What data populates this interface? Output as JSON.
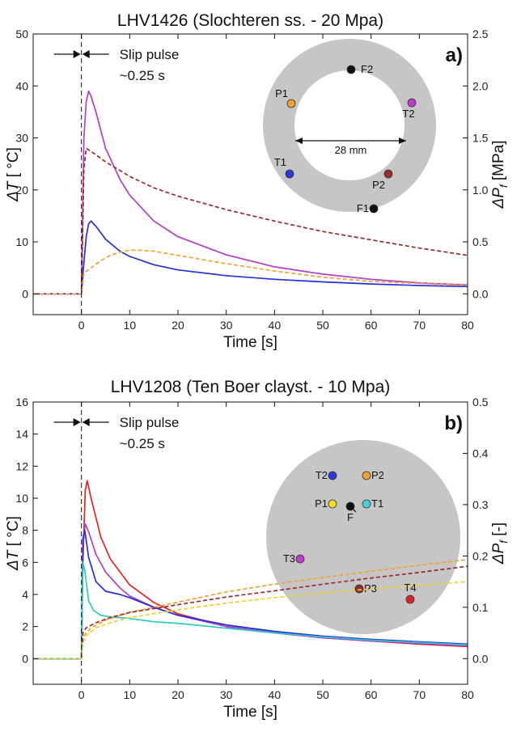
{
  "chart_data": [
    {
      "type": "line",
      "panel_label": "a)",
      "title": "LHV1426 (Slochteren ss. - 20 Mpa)",
      "xlabel": "Time [s]",
      "ylabel_prefix": "ΔT",
      "ylabel_unit": "[ °C]",
      "y2label_prefix": "ΔP",
      "y2label_sub": "f",
      "y2label_unit": "[MPa]",
      "xlim": [
        -10,
        80
      ],
      "ylim": [
        -4,
        50
      ],
      "y2lim": [
        -0.2,
        2.5
      ],
      "x_ticks": [
        0,
        10,
        20,
        30,
        40,
        50,
        60,
        70,
        80
      ],
      "y_ticks": [
        0,
        10,
        20,
        30,
        40,
        50
      ],
      "y2_ticks": [
        "0.0",
        "0.5",
        "1.0",
        "1.5",
        "2.0",
        "2.5"
      ],
      "grid": false,
      "slip_annotation": {
        "line1": "Slip pulse",
        "line2": "~0.25 s"
      },
      "series": [
        {
          "color": "#b23ec9",
          "axis": "left",
          "style": "solid",
          "points": [
            [
              -10,
              0
            ],
            [
              0,
              0
            ],
            [
              0.5,
              30
            ],
            [
              1,
              37
            ],
            [
              1.5,
              39
            ],
            [
              2,
              38
            ],
            [
              3,
              35
            ],
            [
              5,
              28
            ],
            [
              8,
              22
            ],
            [
              10,
              19
            ],
            [
              15,
              14
            ],
            [
              20,
              11
            ],
            [
              30,
              7.5
            ],
            [
              40,
              5.2
            ],
            [
              50,
              3.8
            ],
            [
              60,
              2.8
            ],
            [
              70,
              2.1
            ],
            [
              80,
              1.7
            ]
          ]
        },
        {
          "color": "#2730d8",
          "axis": "left",
          "style": "solid",
          "points": [
            [
              -10,
              0
            ],
            [
              0,
              0
            ],
            [
              0.5,
              6
            ],
            [
              1,
              11
            ],
            [
              1.5,
              13.5
            ],
            [
              2,
              14
            ],
            [
              3,
              13
            ],
            [
              5,
              10.5
            ],
            [
              8,
              8.2
            ],
            [
              10,
              7.2
            ],
            [
              15,
              5.6
            ],
            [
              20,
              4.6
            ],
            [
              30,
              3.5
            ],
            [
              40,
              2.8
            ],
            [
              50,
              2.3
            ],
            [
              60,
              1.9
            ],
            [
              70,
              1.6
            ],
            [
              80,
              1.4
            ]
          ]
        },
        {
          "color": "#9c2a2a",
          "axis": "right",
          "style": "dashed",
          "points": [
            [
              -10,
              0
            ],
            [
              0,
              0
            ],
            [
              0.5,
              1.2
            ],
            [
              1,
              1.4
            ],
            [
              2,
              1.37
            ],
            [
              5,
              1.27
            ],
            [
              10,
              1.13
            ],
            [
              15,
              1.02
            ],
            [
              20,
              0.94
            ],
            [
              30,
              0.81
            ],
            [
              40,
              0.7
            ],
            [
              50,
              0.6
            ],
            [
              60,
              0.52
            ],
            [
              70,
              0.44
            ],
            [
              80,
              0.37
            ]
          ]
        },
        {
          "color": "#f2a230",
          "axis": "right",
          "style": "dashed",
          "points": [
            [
              -10,
              0
            ],
            [
              0,
              0
            ],
            [
              0.5,
              0.2
            ],
            [
              2,
              0.25
            ],
            [
              4,
              0.32
            ],
            [
              6,
              0.37
            ],
            [
              8,
              0.4
            ],
            [
              10,
              0.42
            ],
            [
              12,
              0.42
            ],
            [
              15,
              0.41
            ],
            [
              20,
              0.37
            ],
            [
              30,
              0.29
            ],
            [
              40,
              0.22
            ],
            [
              50,
              0.16
            ],
            [
              60,
              0.12
            ],
            [
              70,
              0.1
            ],
            [
              80,
              0.08
            ]
          ]
        }
      ],
      "inset": {
        "shape": "ring",
        "dimension_label": "28 mm",
        "sensors": [
          {
            "label": "F2",
            "color": "#111111"
          },
          {
            "label": "P1",
            "color": "#f2a230"
          },
          {
            "label": "T2",
            "color": "#c23ad0"
          },
          {
            "label": "T1",
            "color": "#2a3ad8"
          },
          {
            "label": "P2",
            "color": "#9c2a2a"
          },
          {
            "label": "F1",
            "color": "#111111"
          }
        ]
      }
    },
    {
      "type": "line",
      "panel_label": "b)",
      "title": "LHV1208 (Ten Boer clayst. - 10 Mpa)",
      "xlabel": "Time [s]",
      "ylabel_prefix": "ΔT",
      "ylabel_unit": "[ °C]",
      "y2label_prefix": "ΔP",
      "y2label_sub": "f",
      "y2label_unit": "[-]",
      "xlim": [
        -10,
        80
      ],
      "ylim": [
        -1.6,
        16
      ],
      "y2lim": [
        -0.05,
        0.5
      ],
      "x_ticks": [
        0,
        10,
        20,
        30,
        40,
        50,
        60,
        70,
        80
      ],
      "y_ticks": [
        0,
        2,
        4,
        6,
        8,
        10,
        12,
        14,
        16
      ],
      "y2_ticks": [
        "0.0",
        "0.1",
        "0.2",
        "0.3",
        "0.4",
        "0.5"
      ],
      "grid": false,
      "slip_annotation": {
        "line1": "Slip pulse",
        "line2": "~0.25 s"
      },
      "series": [
        {
          "color": "#e02424",
          "axis": "left",
          "style": "solid",
          "points": [
            [
              -10,
              0
            ],
            [
              0,
              0
            ],
            [
              0.3,
              6
            ],
            [
              0.8,
              10.5
            ],
            [
              1.2,
              11.1
            ],
            [
              2,
              10
            ],
            [
              4,
              7.6
            ],
            [
              6,
              6.2
            ],
            [
              10,
              4.6
            ],
            [
              15,
              3.5
            ],
            [
              20,
              2.8
            ],
            [
              30,
              2
            ],
            [
              40,
              1.6
            ],
            [
              50,
              1.3
            ],
            [
              60,
              1.1
            ],
            [
              70,
              0.9
            ],
            [
              80,
              0.75
            ]
          ]
        },
        {
          "color": "#b23ec9",
          "axis": "left",
          "style": "solid",
          "points": [
            [
              -10,
              0
            ],
            [
              0,
              0
            ],
            [
              0.3,
              7
            ],
            [
              0.8,
              8.4
            ],
            [
              1.5,
              7.9
            ],
            [
              3,
              6.5
            ],
            [
              5,
              5.4
            ],
            [
              8,
              4.4
            ],
            [
              10,
              3.9
            ],
            [
              15,
              3.2
            ],
            [
              20,
              2.7
            ],
            [
              30,
              2
            ],
            [
              40,
              1.6
            ],
            [
              50,
              1.3
            ],
            [
              60,
              1.1
            ],
            [
              70,
              0.95
            ],
            [
              80,
              0.8
            ]
          ]
        },
        {
          "color": "#2730d8",
          "axis": "left",
          "style": "solid",
          "points": [
            [
              -10,
              0
            ],
            [
              0,
              0
            ],
            [
              0.3,
              7.5
            ],
            [
              0.7,
              8
            ],
            [
              1.5,
              6.3
            ],
            [
              3,
              4.8
            ],
            [
              5,
              4.2
            ],
            [
              8,
              4
            ],
            [
              10,
              3.8
            ],
            [
              15,
              3.2
            ],
            [
              20,
              2.7
            ],
            [
              30,
              2.1
            ],
            [
              40,
              1.7
            ],
            [
              50,
              1.4
            ],
            [
              60,
              1.2
            ],
            [
              70,
              1.05
            ],
            [
              80,
              0.9
            ]
          ]
        },
        {
          "color": "#2ec9c4",
          "axis": "left",
          "style": "solid",
          "points": [
            [
              -10,
              0
            ],
            [
              0,
              0
            ],
            [
              0.3,
              6
            ],
            [
              0.7,
              5.5
            ],
            [
              1.5,
              3.6
            ],
            [
              2.5,
              3
            ],
            [
              4,
              2.7
            ],
            [
              6,
              2.6
            ],
            [
              10,
              2.5
            ],
            [
              15,
              2.3
            ],
            [
              20,
              2.2
            ],
            [
              30,
              1.9
            ],
            [
              40,
              1.6
            ],
            [
              50,
              1.35
            ],
            [
              60,
              1.15
            ],
            [
              70,
              1
            ],
            [
              80,
              0.85
            ]
          ]
        },
        {
          "color": "#f2a230",
          "axis": "right",
          "style": "dashed",
          "points": [
            [
              -10,
              0
            ],
            [
              0,
              0
            ],
            [
              0.3,
              0.04
            ],
            [
              1,
              0.05
            ],
            [
              2,
              0.06
            ],
            [
              5,
              0.075
            ],
            [
              10,
              0.09
            ],
            [
              20,
              0.11
            ],
            [
              30,
              0.13
            ],
            [
              40,
              0.145
            ],
            [
              50,
              0.158
            ],
            [
              60,
              0.17
            ],
            [
              70,
              0.182
            ],
            [
              80,
              0.193
            ]
          ]
        },
        {
          "color": "#9c2a2a",
          "axis": "right",
          "style": "dashed",
          "points": [
            [
              -10,
              0
            ],
            [
              0,
              0
            ],
            [
              0.3,
              0.05
            ],
            [
              1,
              0.06
            ],
            [
              3,
              0.07
            ],
            [
              6,
              0.08
            ],
            [
              10,
              0.09
            ],
            [
              20,
              0.105
            ],
            [
              30,
              0.12
            ],
            [
              40,
              0.132
            ],
            [
              50,
              0.145
            ],
            [
              60,
              0.157
            ],
            [
              70,
              0.168
            ],
            [
              80,
              0.18
            ]
          ]
        },
        {
          "color": "#f4cf2a",
          "axis": "right",
          "style": "dashed",
          "points": [
            [
              -10,
              0
            ],
            [
              0,
              0
            ],
            [
              0.3,
              0.03
            ],
            [
              1,
              0.045
            ],
            [
              3,
              0.06
            ],
            [
              6,
              0.07
            ],
            [
              10,
              0.08
            ],
            [
              20,
              0.095
            ],
            [
              30,
              0.108
            ],
            [
              40,
              0.119
            ],
            [
              50,
              0.128
            ],
            [
              60,
              0.136
            ],
            [
              70,
              0.143
            ],
            [
              80,
              0.15
            ]
          ]
        }
      ],
      "inset": {
        "shape": "disc",
        "sensors": [
          {
            "label": "T2",
            "color": "#2a3ad8"
          },
          {
            "label": "P2",
            "color": "#f2a230"
          },
          {
            "label": "P1",
            "color": "#f4dc2a"
          },
          {
            "label": "T1",
            "color": "#46d2d2"
          },
          {
            "label": "F",
            "color": "#111111"
          },
          {
            "label": "T3",
            "color": "#c23ad0"
          },
          {
            "label": "P3",
            "color": "#9c2a2a"
          },
          {
            "label": "T4",
            "color": "#e02424"
          }
        ]
      }
    }
  ]
}
